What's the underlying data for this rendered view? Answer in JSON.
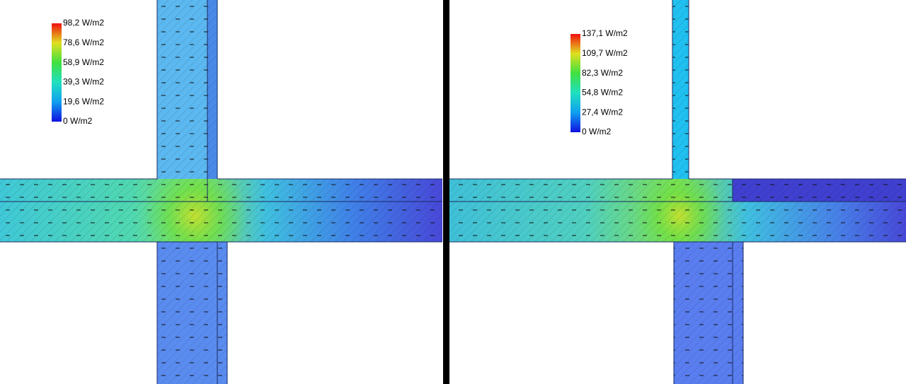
{
  "panels": [
    {
      "legend": [
        "98,2 W/m2",
        "78,6 W/m2",
        "58,9 W/m2",
        "39,3 W/m2",
        "19,6 W/m2",
        "0 W/m2"
      ]
    },
    {
      "legend": [
        "137,1 W/m2",
        "109,7 W/m2",
        "82,3 W/m2",
        "54,8 W/m2",
        "27,4 W/m2",
        "0 W/m2"
      ]
    }
  ]
}
